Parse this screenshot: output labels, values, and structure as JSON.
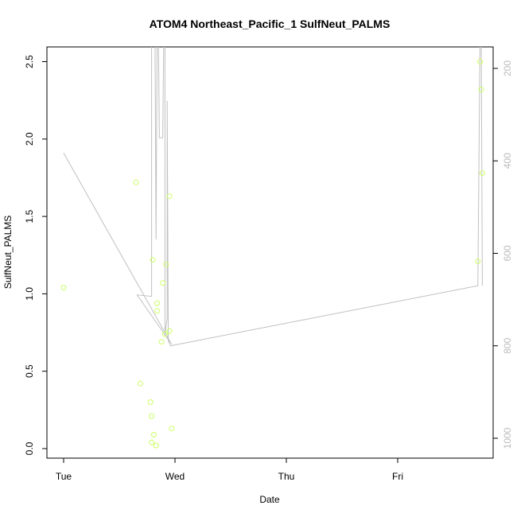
{
  "chart_data": {
    "type": "scatter",
    "title": "ATOM4 Northeast_Pacific_1 SulfNeut_PALMS",
    "xlabel": "Date",
    "ylabel": "SulfNeut_PALMS",
    "x_tick_labels": [
      "Tue",
      "Wed",
      "Thu",
      "Fri"
    ],
    "xlim": [
      0.0,
      3.9
    ],
    "ylim": [
      -0.07,
      2.6
    ],
    "y_ticks": [
      0.0,
      0.5,
      1.0,
      1.5,
      2.0,
      2.5
    ],
    "y_tick_labels": [
      "0.0",
      "0.5",
      "1.0",
      "1.5",
      "2.0",
      "2.5"
    ],
    "y2_ticks": [
      200,
      400,
      600,
      800,
      1000
    ],
    "y2_tick_labels": [
      "200",
      "400",
      "600",
      "800",
      "1000"
    ],
    "y2lim": [
      1025,
      163
    ],
    "point_color": "#ccff66",
    "line_color": "#c0c0c0",
    "grid": false,
    "points": [
      [
        0.0,
        1.04
      ],
      [
        0.65,
        1.72
      ],
      [
        0.69,
        0.42
      ],
      [
        0.78,
        0.3
      ],
      [
        0.79,
        0.21
      ],
      [
        0.79,
        0.04
      ],
      [
        0.8,
        1.22
      ],
      [
        0.81,
        0.09
      ],
      [
        0.83,
        0.02
      ],
      [
        0.84,
        0.94
      ],
      [
        0.84,
        0.89
      ],
      [
        0.88,
        0.69
      ],
      [
        0.89,
        1.07
      ],
      [
        0.91,
        0.74
      ],
      [
        0.92,
        1.19
      ],
      [
        0.95,
        1.63
      ],
      [
        0.95,
        0.76
      ],
      [
        0.97,
        0.13
      ],
      [
        3.72,
        1.21
      ],
      [
        3.74,
        2.5
      ],
      [
        3.75,
        2.32
      ],
      [
        3.76,
        1.78
      ]
    ],
    "altitude_track": [
      [
        0.0,
        383
      ],
      [
        0.97,
        797
      ],
      [
        0.66,
        690
      ],
      [
        0.79,
        693
      ],
      [
        0.79,
        112
      ],
      [
        0.82,
        112
      ],
      [
        0.83,
        570
      ],
      [
        0.84,
        112
      ],
      [
        0.85,
        112
      ],
      [
        0.86,
        350
      ],
      [
        0.89,
        350
      ],
      [
        0.9,
        112
      ],
      [
        0.91,
        112
      ],
      [
        0.91,
        774
      ],
      [
        0.93,
        742
      ],
      [
        0.93,
        270
      ],
      [
        0.94,
        790
      ],
      [
        0.96,
        800
      ],
      [
        3.72,
        670
      ],
      [
        3.74,
        112
      ],
      [
        3.75,
        112
      ],
      [
        3.76,
        670
      ]
    ]
  }
}
